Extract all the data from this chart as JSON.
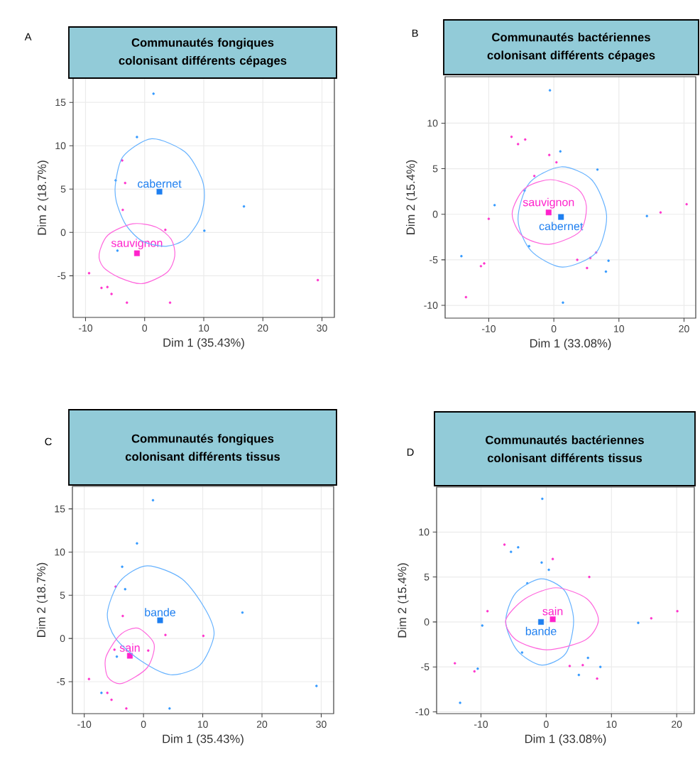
{
  "chart_data": [
    {
      "type": "scatter",
      "title": "Communautés fongiques colonisant différents cépages",
      "xlabel": "Dim 1 (35.43%)",
      "ylabel": "Dim 2 (18.7%)",
      "annotations": [
        "A"
      ],
      "xlim": [
        -12.1,
        32.1
      ],
      "ylim": [
        -9.8,
        17.8
      ],
      "xticks": [
        -10,
        0,
        10,
        20,
        30
      ],
      "yticks": [
        -5,
        0,
        5,
        10,
        15
      ],
      "grid": true,
      "series": [
        {
          "type": "scatter",
          "marker": "circle",
          "color": "#3399ff",
          "x": [
            1.5,
            -1.3,
            -4.9,
            16.8,
            10.1,
            -4.6
          ],
          "values": [
            16.0,
            11.0,
            6.0,
            3.0,
            0.2,
            -2.1
          ]
        },
        {
          "type": "scatter",
          "marker": "circle",
          "color": "#ff33cc",
          "x": [
            -3.8,
            -3.3,
            -3.7,
            3.5,
            -9.4,
            -7.3,
            -6.3,
            -5.6,
            -3.0,
            4.3,
            29.3
          ],
          "values": [
            8.3,
            5.7,
            2.6,
            0.3,
            -4.7,
            -6.4,
            -6.3,
            -7.1,
            -8.1,
            -8.1,
            -5.5
          ]
        },
        {
          "type": "scatter",
          "marker": "square",
          "name": "cabernet",
          "color": "#1e7ff0",
          "x": [
            2.5
          ],
          "values": [
            4.7
          ]
        },
        {
          "type": "scatter",
          "marker": "square",
          "name": "sauvignon",
          "color": "#ff22cc",
          "x": [
            -1.3
          ],
          "values": [
            -2.4
          ]
        }
      ]
    },
    {
      "type": "scatter",
      "title": "Communautés bactériennes colonisant différents cépages",
      "xlabel": "Dim 1 (33.08%)",
      "ylabel": "Dim 2 (15.4%)",
      "annotations": [
        "B"
      ],
      "xlim": [
        -16.7,
        21.8
      ],
      "ylim": [
        -11.4,
        15.1
      ],
      "xticks": [
        -10,
        0,
        10,
        20
      ],
      "yticks": [
        -10,
        -5,
        0,
        5,
        10
      ],
      "grid": true,
      "series": [
        {
          "type": "scatter",
          "marker": "circle",
          "color": "#3399ff",
          "x": [
            -0.6,
            1.0,
            6.7,
            -9.1,
            14.3,
            -3.8,
            -14.2,
            8.4,
            8.0,
            1.4,
            -4.5
          ],
          "values": [
            13.6,
            6.9,
            4.9,
            1.0,
            -0.2,
            -3.5,
            -4.6,
            -5.1,
            -6.3,
            -9.7,
            2.6
          ]
        },
        {
          "type": "scatter",
          "marker": "circle",
          "color": "#ff33cc",
          "x": [
            -6.5,
            -5.5,
            -4.4,
            -0.7,
            0.4,
            -3.0,
            -10.0,
            16.4,
            20.4,
            6.5,
            5.6,
            3.6,
            5.1,
            -10.7,
            -11.2,
            -13.5
          ],
          "values": [
            8.5,
            7.7,
            8.2,
            6.5,
            5.7,
            4.2,
            -0.5,
            0.2,
            1.1,
            -4.2,
            -4.8,
            -5.0,
            -5.9,
            -5.4,
            -5.7,
            -9.1
          ]
        },
        {
          "type": "scatter",
          "marker": "square",
          "name": "cabernet",
          "color": "#1e7ff0",
          "x": [
            1.1
          ],
          "values": [
            -0.3
          ]
        },
        {
          "type": "scatter",
          "marker": "square",
          "name": "sauvignon",
          "color": "#ff22cc",
          "x": [
            -0.8
          ],
          "values": [
            0.2
          ]
        }
      ]
    },
    {
      "type": "scatter",
      "title": "Communautés fongiques colonisant différents tissus",
      "xlabel": "Dim 1 (35.43%)",
      "ylabel": "Dim 2 (18.7%)",
      "annotations": [
        "C"
      ],
      "xlim": [
        -12.0,
        32.1
      ],
      "ylim": [
        -8.7,
        17.6
      ],
      "xticks": [
        -10,
        0,
        10,
        20,
        30
      ],
      "yticks": [
        -5,
        0,
        5,
        10,
        15
      ],
      "grid": true,
      "series": [
        {
          "type": "scatter",
          "marker": "circle",
          "color": "#3399ff",
          "x": [
            1.6,
            -1.1,
            -3.6,
            -3.1,
            16.7,
            -4.5,
            -7.1,
            4.4,
            29.2
          ],
          "values": [
            16.0,
            11.0,
            8.3,
            5.7,
            3.0,
            -2.1,
            -6.3,
            -8.1,
            -5.5
          ]
        },
        {
          "type": "scatter",
          "marker": "circle",
          "color": "#ff33cc",
          "x": [
            -4.7,
            -3.5,
            3.7,
            10.1,
            -4.9,
            0.8,
            -9.2,
            -6.1,
            -5.4,
            -2.9
          ],
          "values": [
            6.0,
            2.6,
            0.4,
            0.3,
            -1.3,
            -1.4,
            -4.7,
            -6.3,
            -7.1,
            -8.1
          ]
        },
        {
          "type": "scatter",
          "marker": "square",
          "name": "bande",
          "color": "#1e7ff0",
          "x": [
            2.8
          ],
          "values": [
            2.1
          ]
        },
        {
          "type": "scatter",
          "marker": "square",
          "name": "sain",
          "color": "#ff22cc",
          "x": [
            -2.3
          ],
          "values": [
            -2.0
          ]
        }
      ]
    },
    {
      "type": "scatter",
      "title": "Communautés bactériennes colonisant différents tissus",
      "xlabel": "Dim 1 (33.08%)",
      "ylabel": "Dim 2 (15.4%)",
      "annotations": [
        "D"
      ],
      "xlim": [
        -16.8,
        22.7
      ],
      "ylim": [
        -10.2,
        15.0
      ],
      "xticks": [
        -10,
        0,
        10,
        20
      ],
      "yticks": [
        -10,
        -5,
        0,
        5,
        10
      ],
      "grid": true,
      "series": [
        {
          "type": "scatter",
          "marker": "circle",
          "color": "#3399ff",
          "x": [
            -0.6,
            -4.3,
            -5.4,
            -0.7,
            0.4,
            -2.9,
            -9.8,
            14.1,
            -3.7,
            6.4,
            8.3,
            5.0,
            -10.5,
            -13.2
          ],
          "values": [
            13.7,
            8.3,
            7.8,
            6.6,
            5.8,
            4.3,
            -0.4,
            -0.1,
            -3.4,
            -4.0,
            -5.0,
            -5.9,
            -5.2,
            -9.0
          ]
        },
        {
          "type": "scatter",
          "marker": "circle",
          "color": "#ff33cc",
          "x": [
            -6.4,
            1.0,
            6.6,
            -9.0,
            16.1,
            20.1,
            -14.0,
            -11.0,
            3.6,
            5.6,
            7.8
          ],
          "values": [
            8.6,
            7.0,
            5.0,
            1.2,
            0.4,
            1.2,
            -4.6,
            -5.5,
            -4.9,
            -4.8,
            -6.3
          ]
        },
        {
          "type": "scatter",
          "marker": "square",
          "name": "bande",
          "color": "#1e7ff0",
          "x": [
            -0.8
          ],
          "values": [
            0.0
          ]
        },
        {
          "type": "scatter",
          "marker": "square",
          "name": "sain",
          "color": "#ff22cc",
          "x": [
            1.0
          ],
          "values": [
            0.3
          ]
        }
      ]
    }
  ]
}
